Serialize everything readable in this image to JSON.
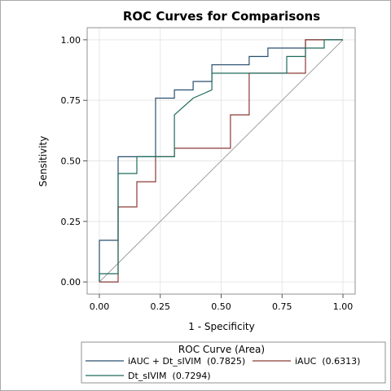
{
  "chart_data": {
    "type": "line",
    "title": "ROC Curves for Comparisons",
    "xlabel": "1 - Specificity",
    "ylabel": "Sensitivity",
    "xlim": [
      -0.05,
      1.05
    ],
    "ylim": [
      -0.05,
      1.05
    ],
    "x_ticks": [
      "0.00",
      "0.25",
      "0.50",
      "0.75",
      "1.00"
    ],
    "y_ticks": [
      "0.00",
      "0.25",
      "0.50",
      "0.75",
      "1.00"
    ],
    "grid": true,
    "legend_position": "bottom",
    "legend_title": "ROC Curve (Area)",
    "reference_line": {
      "x": [
        0,
        1
      ],
      "y": [
        0,
        1
      ],
      "color": "#a0a0a0"
    },
    "series": [
      {
        "name": "iAUC + Dt_sIVIM",
        "area": "(0.7825)",
        "color": "#2a4f6e",
        "x": [
          0,
          0,
          0.077,
          0.077,
          0.077,
          0.231,
          0.231,
          0.308,
          0.308,
          0.385,
          0.385,
          0.462,
          0.462,
          0.615,
          0.615,
          0.692,
          0.692,
          0.846,
          0.846,
          1.0
        ],
        "y": [
          0,
          0.172,
          0.172,
          0.448,
          0.517,
          0.517,
          0.759,
          0.759,
          0.793,
          0.793,
          0.828,
          0.828,
          0.897,
          0.897,
          0.931,
          0.931,
          0.966,
          0.966,
          1.0,
          1.0
        ]
      },
      {
        "name": "iAUC",
        "area": "(0.6313)",
        "color": "#8b3a36",
        "x": [
          0,
          0.077,
          0.077,
          0.154,
          0.154,
          0.231,
          0.231,
          0.308,
          0.308,
          0.538,
          0.538,
          0.615,
          0.615,
          0.846,
          0.846,
          1.0
        ],
        "y": [
          0,
          0,
          0.31,
          0.31,
          0.414,
          0.414,
          0.517,
          0.517,
          0.552,
          0.552,
          0.69,
          0.69,
          0.862,
          0.862,
          1.0,
          1.0
        ]
      },
      {
        "name": "Dt_sIVIM",
        "area": "(0.7294)",
        "color": "#1e6b5c",
        "x": [
          0,
          0,
          0.077,
          0.077,
          0.154,
          0.154,
          0.308,
          0.308,
          0.385,
          0.462,
          0.462,
          0.769,
          0.769,
          0.846,
          0.846,
          0.923,
          0.923,
          1.0
        ],
        "y": [
          0,
          0.034,
          0.034,
          0.448,
          0.448,
          0.517,
          0.517,
          0.69,
          0.759,
          0.793,
          0.862,
          0.862,
          0.931,
          0.931,
          0.966,
          0.966,
          1.0,
          1.0
        ]
      }
    ]
  }
}
